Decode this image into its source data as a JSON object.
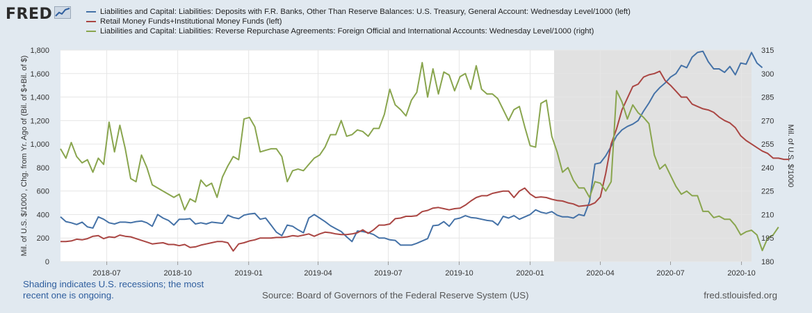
{
  "header": {
    "logo_text": "FRED",
    "logo_icon": "line-chart-icon"
  },
  "legend": [
    {
      "label": "Liabilities and Capital: Liabilities: Deposits with F.R. Banks, Other Than Reserve Balances: U.S. Treasury, General Account: Wednesday Level/1000 (left)",
      "color": "#4572a7"
    },
    {
      "label": "Retail Money Funds+Institutional Money Funds (left)",
      "color": "#aa4643"
    },
    {
      "label": "Liabilities and Capital: Liabilities: Reverse Repurchase Agreements: Foreign Official and International Accounts: Wednesday Level/1000 (right)",
      "color": "#89a54e"
    }
  ],
  "footer": {
    "shading_note": "Shading indicates U.S. recessions; the most recent one is ongoing.",
    "source": "Source: Board of Governors of the Federal Reserve System (US)",
    "url": "fred.stlouisfed.org"
  },
  "chart_data": {
    "type": "line",
    "title": "",
    "ylabel_left": "Mil. of U.S. $/1000 , Chg. from Yr. Ago of (Bil. of $+Bil. of $)",
    "ylabel_right": "Mil. of U.S. $/1000",
    "ylim_left": [
      0,
      1800
    ],
    "ylim_right": [
      180,
      315
    ],
    "yticks_left": [
      "0",
      "200",
      "400",
      "600",
      "800",
      "1,000",
      "1,200",
      "1,400",
      "1,600",
      "1,800"
    ],
    "yticks_right": [
      "180",
      "195",
      "210",
      "225",
      "240",
      "255",
      "270",
      "285",
      "300",
      "315"
    ],
    "xlim": [
      "2018-05-02",
      "2020-10-14"
    ],
    "xticks": [
      {
        "date": "2018-07-01",
        "label": "2018-07"
      },
      {
        "date": "2018-10-01",
        "label": "2018-10"
      },
      {
        "date": "2019-01-01",
        "label": "2019-01"
      },
      {
        "date": "2019-04-01",
        "label": "2019-04"
      },
      {
        "date": "2019-07-01",
        "label": "2019-07"
      },
      {
        "date": "2019-10-01",
        "label": "2019-10"
      },
      {
        "date": "2020-01-01",
        "label": "2020-01"
      },
      {
        "date": "2020-04-01",
        "label": "2020-04"
      },
      {
        "date": "2020-07-01",
        "label": "2020-07"
      },
      {
        "date": "2020-10-01",
        "label": "2020-10"
      }
    ],
    "grid": true,
    "recession_shading": {
      "start": "2020-02-01",
      "end": "2020-10-14"
    },
    "series": [
      {
        "axis": "left",
        "start": "2018-05-02",
        "interval_days": 7,
        "values": [
          380,
          340,
          330,
          315,
          335,
          295,
          285,
          380,
          360,
          330,
          320,
          335,
          335,
          330,
          340,
          345,
          330,
          300,
          400,
          370,
          350,
          310,
          360,
          360,
          365,
          320,
          330,
          320,
          335,
          330,
          325,
          395,
          375,
          365,
          395,
          405,
          410,
          360,
          370,
          310,
          250,
          220,
          310,
          300,
          270,
          245,
          370,
          400,
          370,
          340,
          305,
          280,
          255,
          210,
          170,
          260,
          255,
          245,
          230,
          200,
          200,
          185,
          180,
          140,
          140,
          140,
          155,
          175,
          195,
          305,
          310,
          340,
          300,
          360,
          370,
          390,
          375,
          370,
          360,
          350,
          345,
          310,
          385,
          370,
          390,
          360,
          380,
          400,
          440,
          420,
          410,
          425,
          395,
          380,
          380,
          370,
          400,
          390,
          510,
          830,
          840,
          900,
          980,
          1070,
          1120,
          1150,
          1170,
          1200,
          1280,
          1350,
          1430,
          1480,
          1520,
          1570,
          1600,
          1670,
          1650,
          1740,
          1780,
          1790,
          1700,
          1640,
          1640,
          1610,
          1660,
          1590,
          1690,
          1680,
          1780,
          1690,
          1650
        ]
      },
      {
        "axis": "left",
        "start": "2018-05-02",
        "interval_days": 7,
        "values": [
          170,
          170,
          175,
          190,
          185,
          195,
          215,
          220,
          195,
          210,
          205,
          225,
          215,
          210,
          195,
          180,
          165,
          150,
          155,
          160,
          145,
          145,
          135,
          145,
          120,
          125,
          140,
          150,
          160,
          170,
          170,
          160,
          90,
          150,
          160,
          175,
          185,
          200,
          200,
          200,
          205,
          205,
          210,
          220,
          215,
          225,
          235,
          215,
          235,
          250,
          245,
          235,
          230,
          230,
          235,
          245,
          270,
          240,
          270,
          310,
          310,
          320,
          365,
          370,
          385,
          385,
          390,
          425,
          435,
          455,
          460,
          450,
          440,
          450,
          455,
          480,
          515,
          545,
          560,
          560,
          580,
          590,
          600,
          600,
          545,
          600,
          625,
          575,
          545,
          550,
          545,
          530,
          520,
          515,
          500,
          490,
          470,
          475,
          480,
          500,
          550,
          750,
          1000,
          1130,
          1290,
          1390,
          1490,
          1510,
          1570,
          1590,
          1600,
          1620,
          1540,
          1500,
          1450,
          1400,
          1400,
          1340,
          1320,
          1300,
          1290,
          1270,
          1230,
          1200,
          1180,
          1140,
          1070,
          1030,
          1000,
          970,
          940,
          920,
          880,
          880,
          870,
          870
        ]
      },
      {
        "axis": "right",
        "start": "2018-05-02",
        "interval_days": 7,
        "values": [
          252,
          246,
          256,
          247,
          243,
          245,
          237,
          246,
          242,
          269,
          250,
          267,
          252,
          233,
          231,
          248,
          240,
          229,
          227,
          225,
          223,
          221,
          223,
          213,
          220,
          218,
          232,
          228,
          230,
          221,
          234,
          241,
          247,
          245,
          271,
          272,
          266,
          250,
          251,
          252,
          252,
          247,
          231,
          238,
          239,
          238,
          242,
          246,
          248,
          253,
          261,
          261,
          270,
          260,
          261,
          264,
          263,
          260,
          265,
          265,
          274,
          290,
          280,
          277,
          273,
          283,
          288,
          307,
          285,
          303,
          287,
          301,
          299,
          289,
          298,
          300,
          290,
          305,
          290,
          287,
          287,
          284,
          277,
          270,
          277,
          279,
          266,
          254,
          253,
          281,
          283,
          260,
          250,
          237,
          240,
          232,
          227,
          227,
          221,
          231,
          230,
          225,
          231,
          289,
          282,
          271,
          280,
          275,
          272,
          268,
          248,
          239,
          242,
          235,
          228,
          223,
          225,
          222,
          222,
          212,
          212,
          208,
          209,
          207,
          207,
          203,
          197,
          199,
          200,
          197,
          187,
          195,
          197,
          202
        ]
      }
    ]
  }
}
